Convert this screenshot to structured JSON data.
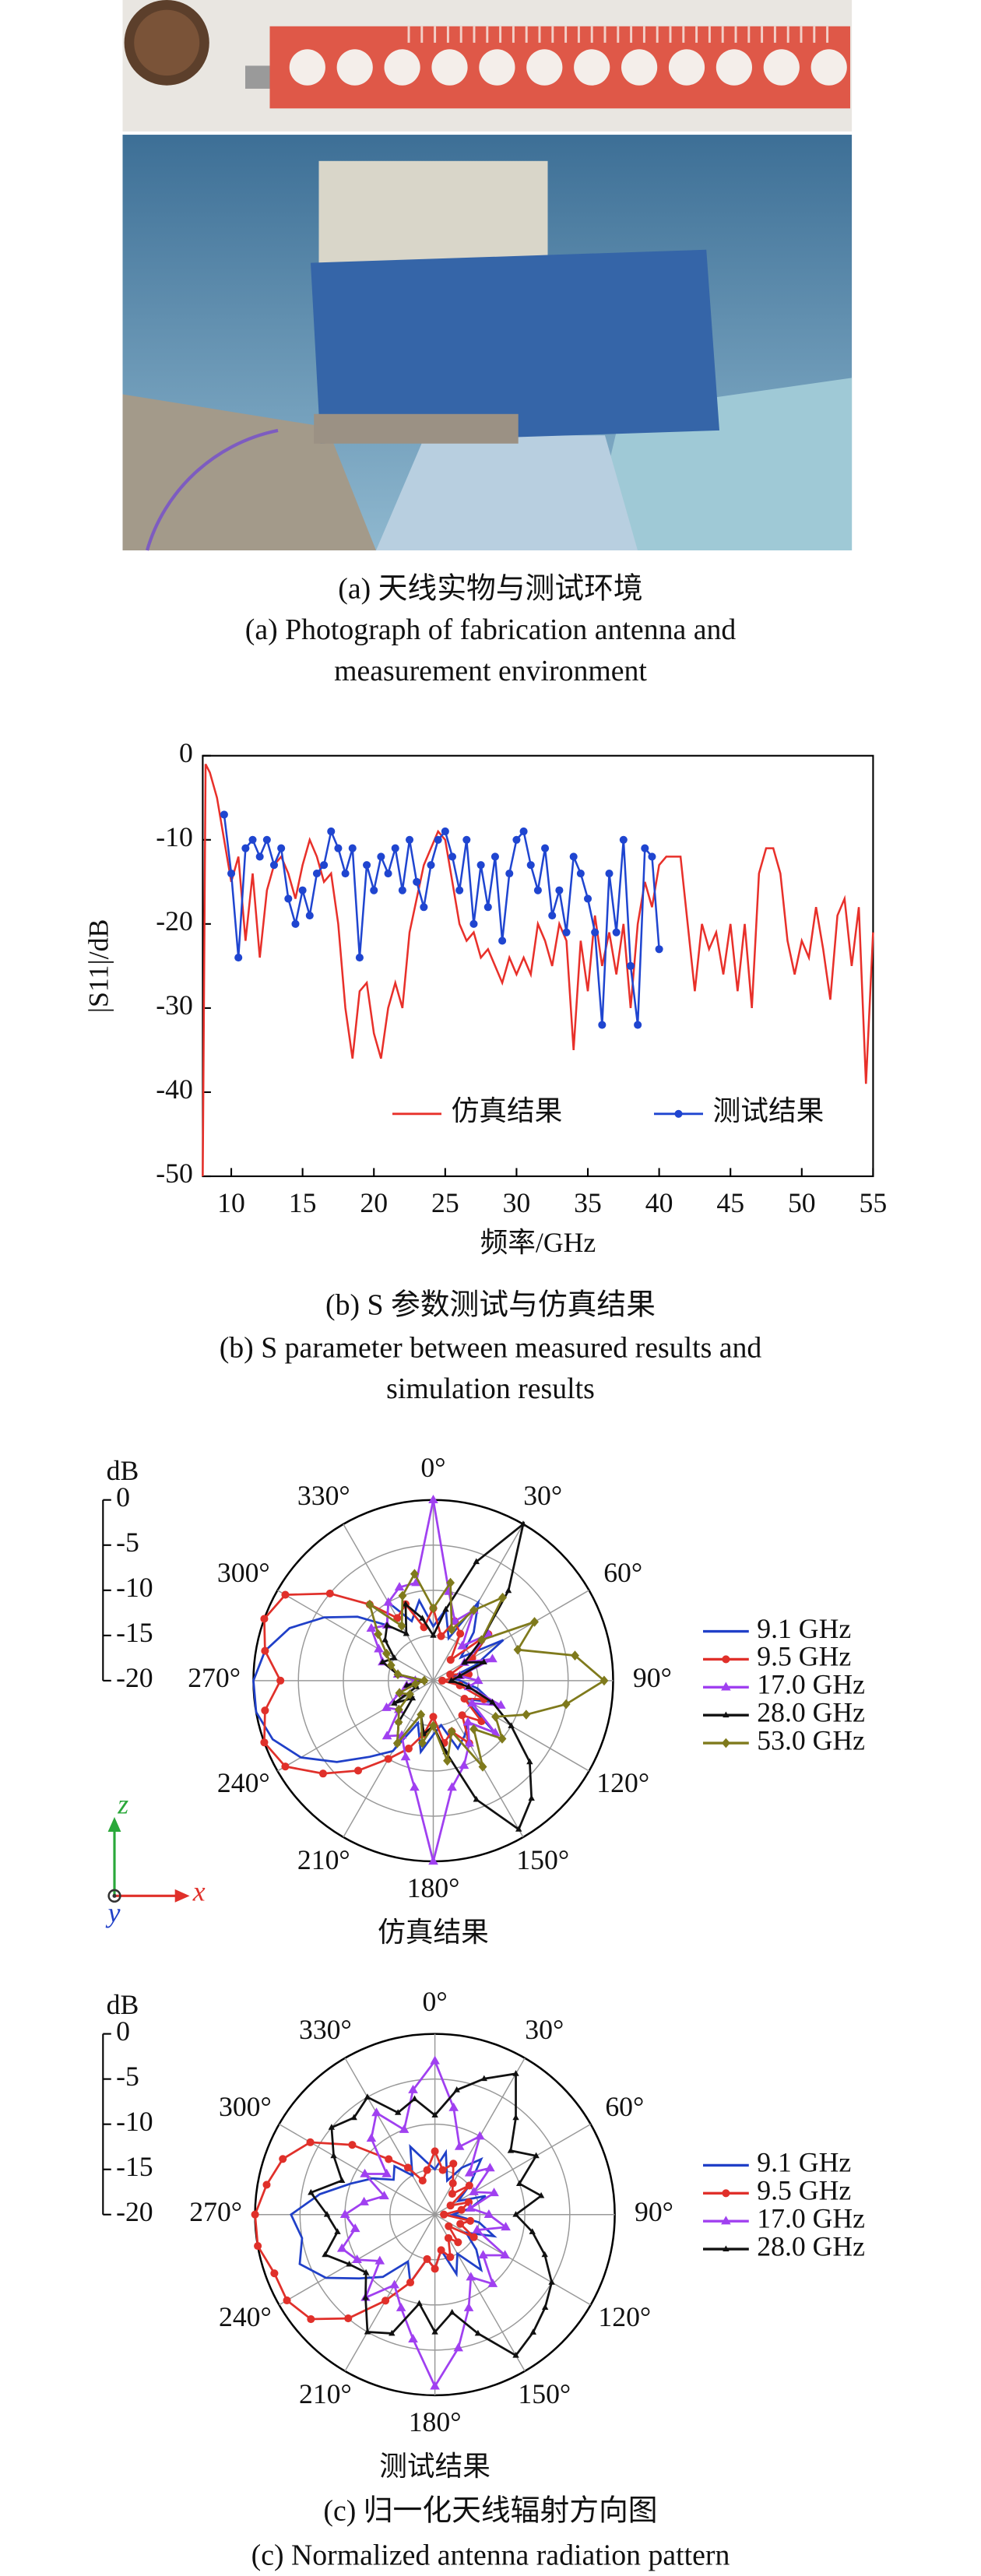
{
  "panel_a": {
    "caption_zh": "(a) 天线实物与测试环境",
    "caption_en": [
      "(a) Photograph of fabrication antenna and",
      "measurement environment"
    ]
  },
  "chart_data": [
    {
      "type": "line",
      "x_label": "频率/GHz",
      "y_label": "|S11|/dB",
      "xlim": [
        8,
        55
      ],
      "ylim": [
        -50,
        0
      ],
      "xticks": [
        10,
        15,
        20,
        25,
        30,
        35,
        40,
        45,
        50,
        55
      ],
      "yticks": [
        0,
        -10,
        -20,
        -30,
        -40,
        -50
      ],
      "legend": "lower right",
      "caption": [
        "(b) S 参数测试与仿真结果",
        "(b) S parameter between measured results and",
        "simulation results"
      ],
      "series": [
        {
          "name": "仿真结果",
          "color": "#e8302a",
          "marker": "none",
          "x": [
            8,
            8.2,
            8.5,
            9,
            9.5,
            10,
            10.5,
            11,
            11.5,
            12,
            12.5,
            13,
            13.5,
            14,
            14.5,
            15,
            15.5,
            16,
            16.5,
            17,
            17.5,
            18,
            18.5,
            19,
            19.5,
            20,
            20.5,
            21,
            21.5,
            22,
            22.5,
            23,
            23.5,
            24,
            24.5,
            25,
            25.5,
            26,
            26.5,
            27,
            27.5,
            28,
            28.5,
            29,
            29.5,
            30,
            30.5,
            31,
            31.5,
            32,
            32.5,
            33,
            33.5,
            34,
            34.5,
            35,
            35.5,
            36,
            36.5,
            37,
            37.5,
            38,
            38.5,
            39,
            39.5,
            40,
            40.5,
            41,
            41.5,
            42,
            42.5,
            43,
            43.5,
            44,
            44.5,
            45,
            45.5,
            46,
            46.5,
            47,
            47.5,
            48,
            48.5,
            49,
            49.5,
            50,
            50.5,
            51,
            51.5,
            52,
            52.5,
            53,
            53.5,
            54,
            54.5,
            55
          ],
          "values": [
            -50,
            -1,
            -2,
            -5,
            -10,
            -15,
            -12,
            -22,
            -14,
            -24,
            -16,
            -13,
            -12,
            -14,
            -17,
            -13,
            -10,
            -12,
            -15,
            -14,
            -20,
            -30,
            -36,
            -28,
            -27,
            -33,
            -36,
            -30,
            -27,
            -30,
            -21,
            -17,
            -13,
            -11,
            -9,
            -10,
            -15,
            -20,
            -22,
            -21,
            -24,
            -23,
            -25,
            -27,
            -24,
            -26,
            -24,
            -26,
            -20,
            -22,
            -25,
            -20,
            -22,
            -35,
            -22,
            -28,
            -19,
            -25,
            -21,
            -26,
            -20,
            -30,
            -20,
            -15,
            -18,
            -13,
            -12,
            -12,
            -12,
            -20,
            -28,
            -20,
            -23,
            -21,
            -26,
            -20,
            -28,
            -20,
            -30,
            -14,
            -11,
            -11,
            -14,
            -22,
            -26,
            -22,
            -24,
            -18,
            -23,
            -29,
            -19,
            -17,
            -25,
            -18,
            -39,
            -21
          ]
        },
        {
          "name": "测试结果",
          "color": "#1f45d0",
          "marker": "circle",
          "x": [
            9.5,
            10,
            10.5,
            11,
            11.5,
            12,
            12.5,
            13,
            13.5,
            14,
            14.5,
            15,
            15.5,
            16,
            16.5,
            17,
            17.5,
            18,
            18.5,
            19,
            19.5,
            20,
            20.5,
            21,
            21.5,
            22,
            22.5,
            23,
            23.5,
            24,
            24.5,
            25,
            25.5,
            26,
            26.5,
            27,
            27.5,
            28,
            28.5,
            29,
            29.5,
            30,
            30.5,
            31,
            31.5,
            32,
            32.5,
            33,
            33.5,
            34,
            34.5,
            35,
            35.5,
            36,
            36.5,
            37,
            37.5,
            38,
            38.5,
            39,
            39.5,
            40
          ],
          "values": [
            -7,
            -14,
            -24,
            -11,
            -10,
            -12,
            -10,
            -13,
            -11,
            -17,
            -20,
            -16,
            -19,
            -14,
            -13,
            -9,
            -11,
            -14,
            -11,
            -24,
            -13,
            -16,
            -12,
            -14,
            -11,
            -16,
            -10,
            -15,
            -18,
            -13,
            -10,
            -9,
            -12,
            -16,
            -10,
            -20,
            -13,
            -18,
            -12,
            -22,
            -14,
            -10,
            -9,
            -13,
            -16,
            -11,
            -19,
            -16,
            -21,
            -12,
            -14,
            -17,
            -21,
            -32,
            -14,
            -21,
            -10,
            -25,
            -32,
            -11,
            -12,
            -23
          ]
        }
      ]
    },
    {
      "type": "polar",
      "title": "仿真结果",
      "r_label": "dB",
      "rlim": [
        -20,
        0
      ],
      "rticks": [
        0,
        -5,
        -10,
        -15,
        -20
      ],
      "theta": [
        0,
        10,
        20,
        30,
        40,
        50,
        60,
        70,
        80,
        90,
        100,
        110,
        120,
        130,
        140,
        150,
        160,
        170,
        180,
        190,
        200,
        210,
        220,
        230,
        240,
        250,
        260,
        270,
        280,
        290,
        300,
        310,
        320,
        330,
        340,
        350
      ],
      "thetaticks": [
        {
          "value": 0,
          "label": "0°"
        },
        {
          "value": 30,
          "label": "30°"
        },
        {
          "value": 60,
          "label": "60°"
        },
        {
          "value": 90,
          "label": "90°"
        },
        {
          "value": 120,
          "label": "120°"
        },
        {
          "value": 150,
          "label": "150°"
        },
        {
          "value": 180,
          "label": "180°"
        },
        {
          "value": 210,
          "label": "210°"
        },
        {
          "value": 240,
          "label": "240°"
        },
        {
          "value": 270,
          "label": "270°"
        },
        {
          "value": 300,
          "label": "300°"
        },
        {
          "value": 330,
          "label": "330°"
        }
      ],
      "series": [
        {
          "name": "9.1 GHz",
          "color": "#2040c8",
          "marker": "none",
          "values": [
            -14,
            -12,
            -15,
            -10,
            -13,
            -16,
            -11,
            -15,
            -18,
            -17,
            -15,
            -13,
            -16,
            -11,
            -14,
            -13,
            -12,
            -15,
            -14,
            -12,
            -15,
            -11,
            -9,
            -6,
            -3,
            -1,
            0,
            0,
            -1,
            -3,
            -6,
            -9,
            -12,
            -10,
            -13,
            -11
          ]
        },
        {
          "name": "9.5 GHz",
          "color": "#e0302a",
          "marker": "circle",
          "values": [
            -12,
            -15,
            -13,
            -14,
            -17,
            -12,
            -15,
            -18,
            -16,
            -19,
            -17,
            -14,
            -16,
            -13,
            -15,
            -12,
            -14,
            -13,
            -16,
            -14,
            -12,
            -10,
            -7,
            -4,
            -1,
            0,
            -1,
            -3,
            -1,
            0,
            -1,
            -5,
            -9,
            -12,
            -11,
            -14
          ]
        },
        {
          "name": "17.0 GHz",
          "color": "#a040f0",
          "marker": "triangle",
          "values": [
            0,
            -10,
            -13,
            -11,
            -15,
            -12,
            -16,
            -13,
            -17,
            -15,
            -16,
            -12,
            -15,
            -11,
            -14,
            -12,
            -10,
            -8,
            0,
            -8,
            -11,
            -13,
            -12,
            -15,
            -14,
            -16,
            -17,
            -18,
            -16,
            -14,
            -13,
            -11,
            -12,
            -10,
            -9,
            -9
          ]
        },
        {
          "name": "28.0 GHz",
          "color": "#111111",
          "marker": "star",
          "values": [
            -15,
            -12,
            -6,
            0,
            -7,
            -13,
            -16,
            -14,
            -17,
            -18,
            -16,
            -13,
            -10,
            -6,
            -3,
            -1,
            -6,
            -12,
            -15,
            -14,
            -16,
            -12,
            -14,
            -17,
            -15,
            -18,
            -17,
            -19,
            -16,
            -14,
            -15,
            -13,
            -12,
            -14,
            -11,
            -13
          ]
        },
        {
          "name": "53.0 GHz",
          "color": "#7f7a1c",
          "marker": "diamond",
          "values": [
            -12,
            -9,
            -14,
            -11,
            -8,
            -13,
            -7,
            -10,
            -4,
            -1,
            -5,
            -9,
            -12,
            -10,
            -13,
            -9,
            -14,
            -11,
            -15,
            -13,
            -16,
            -12,
            -14,
            -15,
            -17,
            -16,
            -18,
            -19,
            -16,
            -15,
            -14,
            -12,
            -9,
            -13,
            -10,
            -8
          ]
        }
      ]
    },
    {
      "type": "polar",
      "title": "测试结果",
      "r_label": "dB",
      "rlim": [
        -20,
        0
      ],
      "rticks": [
        0,
        -5,
        -10,
        -15,
        -20
      ],
      "theta": [
        0,
        10,
        20,
        30,
        40,
        50,
        60,
        70,
        80,
        90,
        100,
        110,
        120,
        130,
        140,
        150,
        160,
        170,
        180,
        190,
        200,
        210,
        220,
        230,
        240,
        250,
        260,
        270,
        280,
        290,
        300,
        310,
        320,
        330,
        340,
        350
      ],
      "thetaticks": [
        {
          "value": 0,
          "label": "0°"
        },
        {
          "value": 30,
          "label": "30°"
        },
        {
          "value": 60,
          "label": "60°"
        },
        {
          "value": 90,
          "label": "90°"
        },
        {
          "value": 120,
          "label": "120°"
        },
        {
          "value": 150,
          "label": "150°"
        },
        {
          "value": 180,
          "label": "180°"
        },
        {
          "value": 210,
          "label": "210°"
        },
        {
          "value": 240,
          "label": "240°"
        },
        {
          "value": 270,
          "label": "270°"
        },
        {
          "value": 300,
          "label": "300°"
        },
        {
          "value": 330,
          "label": "330°"
        }
      ],
      "series": [
        {
          "name": "9.1 GHz",
          "color": "#2040c8",
          "marker": "none",
          "values": [
            -15,
            -13,
            -16,
            -14,
            -12,
            -15,
            -17,
            -14,
            -16,
            -18,
            -15,
            -13,
            -16,
            -14,
            -12,
            -15,
            -13,
            -16,
            -14,
            -15,
            -12,
            -14,
            -11,
            -9,
            -6,
            -4,
            -5,
            -4,
            -7,
            -10,
            -12,
            -14,
            -13,
            -15,
            -12,
            -14
          ]
        },
        {
          "name": "9.5 GHz",
          "color": "#e0302a",
          "marker": "circle",
          "values": [
            -13,
            -15,
            -14,
            -16,
            -17,
            -15,
            -18,
            -16,
            -17,
            -19,
            -16,
            -17,
            -15,
            -18,
            -16,
            -17,
            -15,
            -16,
            -14,
            -15,
            -12,
            -9,
            -5,
            -2,
            -1,
            -1,
            0,
            0,
            -1,
            -2,
            -4,
            -8,
            -12,
            -14,
            -16,
            -15
          ]
        },
        {
          "name": "17.0 GHz",
          "color": "#a040f0",
          "marker": "triangle",
          "values": [
            -3,
            -8,
            -12,
            -10,
            -14,
            -12,
            -15,
            -13,
            -16,
            -14,
            -12,
            -15,
            -11,
            -13,
            -10,
            -12,
            -9,
            -5,
            -1,
            -6,
            -9,
            -11,
            -8,
            -12,
            -10,
            -9,
            -11,
            -10,
            -12,
            -14,
            -11,
            -13,
            -9,
            -7,
            -10,
            -6
          ]
        },
        {
          "name": "28.0 GHz",
          "color": "#111111",
          "marker": "star",
          "values": [
            -9,
            -6,
            -4,
            -2,
            -6,
            -9,
            -7,
            -10,
            -8,
            -11,
            -9,
            -7,
            -5,
            -4,
            -3,
            -2,
            -6,
            -9,
            -7,
            -10,
            -6,
            -5,
            -8,
            -10,
            -9,
            -7,
            -9,
            -8,
            -6,
            -9,
            -7,
            -5,
            -6,
            -5,
            -8,
            -7
          ]
        }
      ]
    }
  ],
  "coordinate_axes": {
    "z": "z",
    "x": "x",
    "y": "y"
  },
  "panel_c": {
    "caption_zh": "(c) 归一化天线辐射方向图",
    "caption_en": "(c) Normalized antenna radiation pattern"
  }
}
